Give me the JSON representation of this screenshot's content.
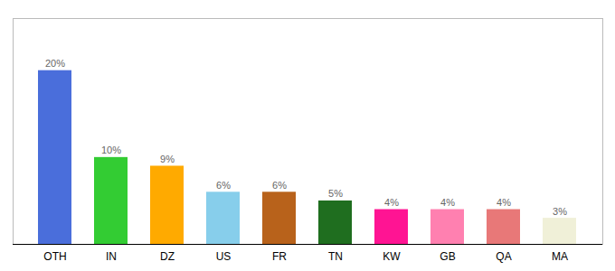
{
  "chart_data": {
    "type": "bar",
    "categories": [
      "OTH",
      "IN",
      "DZ",
      "US",
      "FR",
      "TN",
      "KW",
      "GB",
      "QA",
      "MA"
    ],
    "values": [
      20,
      10,
      9,
      6,
      6,
      5,
      4,
      4,
      4,
      3
    ],
    "value_labels": [
      "20%",
      "10%",
      "9%",
      "6%",
      "6%",
      "5%",
      "4%",
      "4%",
      "4%",
      "3%"
    ],
    "colors": [
      "#4a6edb",
      "#33cc33",
      "#ffaa00",
      "#87ceeb",
      "#b8621b",
      "#1f6e1f",
      "#ff1493",
      "#ff80b0",
      "#e87878",
      "#f0f0d8"
    ],
    "ylim": [
      0,
      26
    ],
    "grid": false,
    "data_labels": true,
    "tick_labels": "x"
  }
}
